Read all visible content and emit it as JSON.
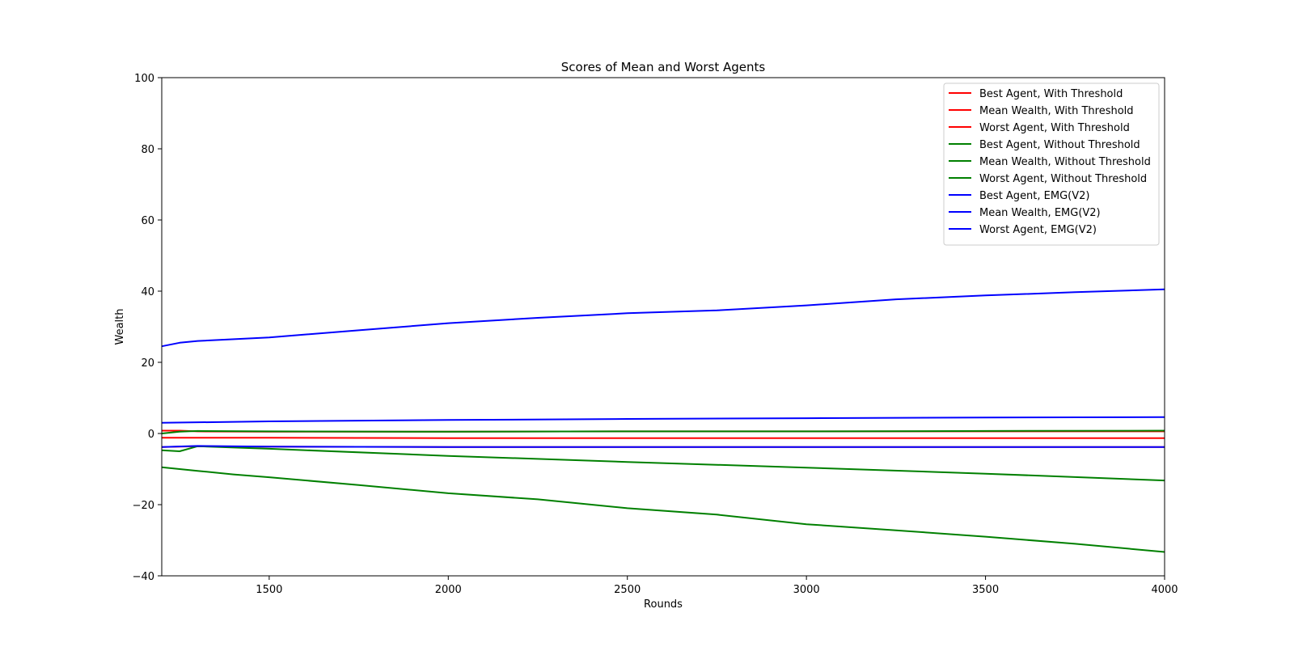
{
  "chart_data": {
    "type": "line",
    "title": "Scores of Mean and Worst Agents",
    "xlabel": "Rounds",
    "ylabel": "Wealth",
    "xlim": [
      1200,
      4000
    ],
    "ylim": [
      -40,
      100
    ],
    "xticks": [
      1500,
      2000,
      2500,
      3000,
      3500,
      4000
    ],
    "yticks": [
      -40,
      -20,
      0,
      20,
      40,
      60,
      80,
      100
    ],
    "grid": false,
    "legend_position": "top-right",
    "series": [
      {
        "name": "Best Agent, With Threshold",
        "color": "#ff0000",
        "x": [
          1200,
          1250,
          1300,
          1500,
          2000,
          2500,
          3000,
          3500,
          4000
        ],
        "y": [
          0.8,
          0.8,
          0.6,
          0.5,
          0.5,
          0.6,
          0.6,
          0.6,
          0.6
        ]
      },
      {
        "name": "Mean Wealth, With Threshold",
        "color": "#ff0000",
        "x": [
          1200,
          1500,
          2000,
          2500,
          3000,
          3500,
          4000
        ],
        "y": [
          -1.2,
          -1.2,
          -1.3,
          -1.3,
          -1.3,
          -1.3,
          -1.3
        ]
      },
      {
        "name": "Worst Agent, With Threshold",
        "color": "#ff0000",
        "x": [
          1200,
          1300,
          1500,
          2000,
          2500,
          3000,
          3500,
          4000
        ],
        "y": [
          -3.8,
          -3.6,
          -3.7,
          -3.8,
          -3.8,
          -3.8,
          -3.8,
          -3.8
        ]
      },
      {
        "name": "Best Agent, Without Threshold",
        "color": "#008000",
        "x": [
          1200,
          1250,
          1300,
          1500,
          2000,
          2500,
          3000,
          3500,
          4000
        ],
        "y": [
          0.0,
          0.5,
          0.7,
          0.6,
          0.5,
          0.6,
          0.6,
          0.7,
          0.8
        ]
      },
      {
        "name": "Mean Wealth, Without Threshold",
        "color": "#008000",
        "x": [
          1200,
          1250,
          1300,
          1500,
          2000,
          2500,
          3000,
          3500,
          4000
        ],
        "y": [
          -4.7,
          -5.0,
          -3.6,
          -4.3,
          -6.3,
          -8.0,
          -9.6,
          -11.3,
          -13.2
        ]
      },
      {
        "name": "Worst Agent, Without Threshold",
        "color": "#008000",
        "x": [
          1200,
          1300,
          1400,
          1500,
          1750,
          2000,
          2250,
          2500,
          2750,
          3000,
          3250,
          3500,
          3750,
          4000
        ],
        "y": [
          -9.5,
          -10.5,
          -11.5,
          -12.3,
          -14.5,
          -16.8,
          -18.5,
          -21.0,
          -22.8,
          -25.5,
          -27.2,
          -29.0,
          -31.0,
          -33.3
        ]
      },
      {
        "name": "Best Agent, EMG(V2)",
        "color": "#0000ff",
        "x": [
          1200,
          1250,
          1300,
          1500,
          1750,
          2000,
          2250,
          2500,
          2750,
          3000,
          3250,
          3500,
          3750,
          4000
        ],
        "y": [
          24.5,
          25.5,
          26.0,
          27.0,
          29.0,
          31.0,
          32.5,
          33.8,
          34.6,
          36.0,
          37.7,
          38.8,
          39.7,
          40.5
        ]
      },
      {
        "name": "Mean Wealth, EMG(V2)",
        "color": "#0000ff",
        "x": [
          1200,
          1500,
          2000,
          2500,
          3000,
          3500,
          4000
        ],
        "y": [
          3.0,
          3.4,
          3.8,
          4.1,
          4.3,
          4.5,
          4.6
        ]
      },
      {
        "name": "Worst Agent, EMG(V2)",
        "color": "#0000ff",
        "x": [
          1200,
          1300,
          1500,
          2000,
          2500,
          3000,
          3500,
          4000
        ],
        "y": [
          -3.8,
          -3.5,
          -3.7,
          -3.8,
          -3.8,
          -3.8,
          -3.8,
          -3.8
        ]
      }
    ]
  }
}
